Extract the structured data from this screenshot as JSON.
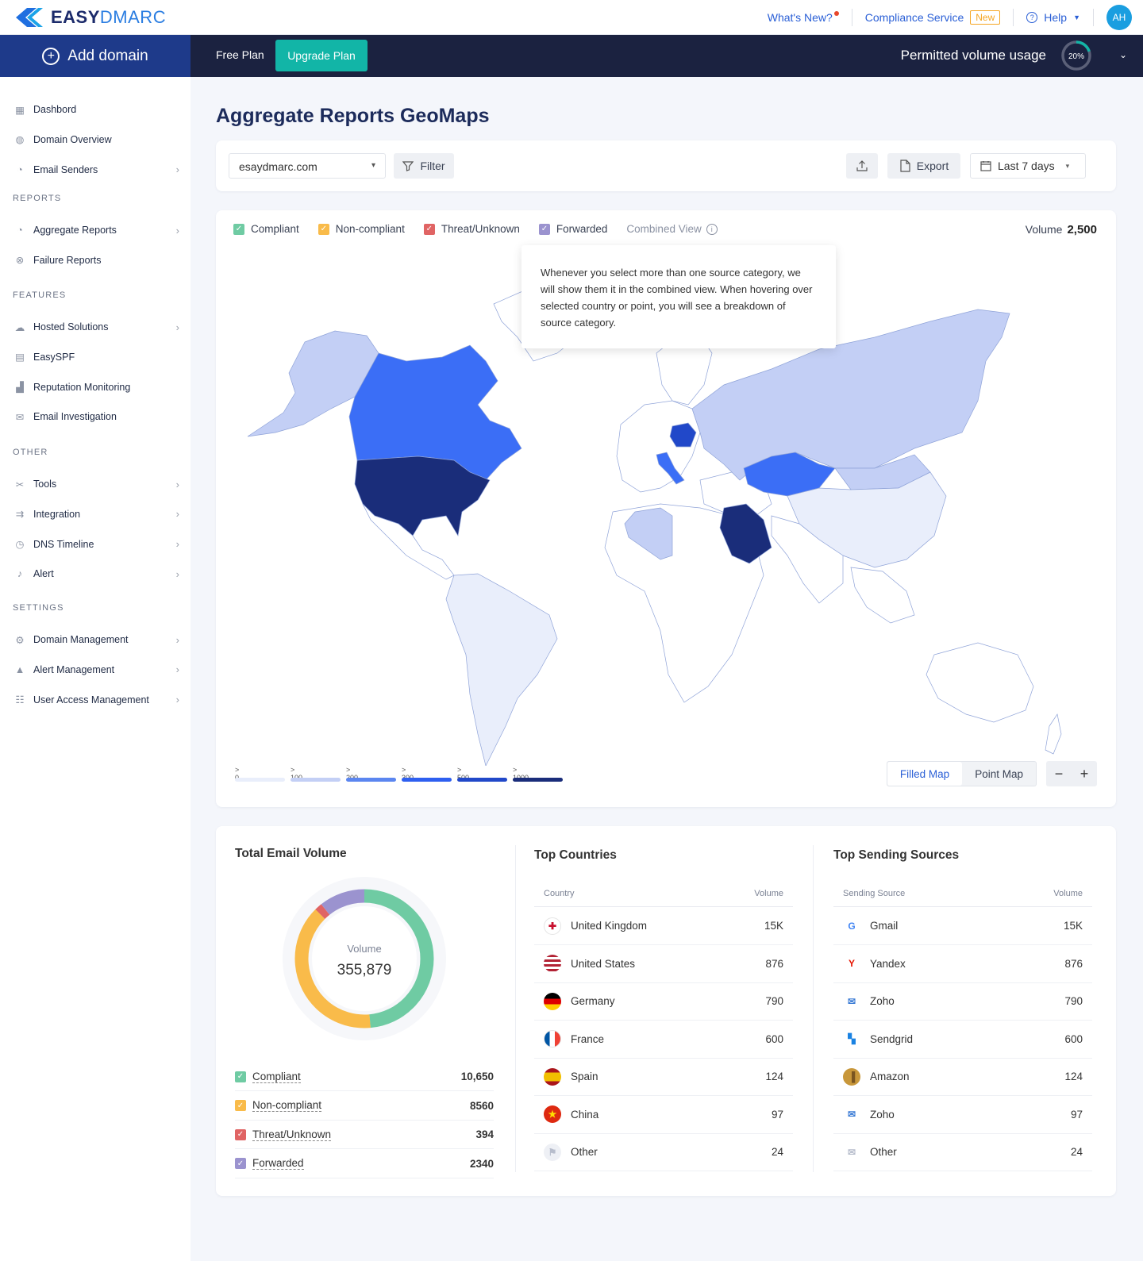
{
  "app": {
    "logo_bold": "EASY",
    "logo_light": "DMARC"
  },
  "topbar": {
    "whats_new": "What's New?",
    "compliance": "Compliance Service",
    "new_badge": "New",
    "help": "Help",
    "avatar": "AH"
  },
  "navbar": {
    "add_domain": "Add domain",
    "free_plan": "Free Plan",
    "upgrade": "Upgrade Plan",
    "permitted": "Permitted volume usage",
    "usage_percent": "20%",
    "usage_fraction": 0.2
  },
  "sidebar": {
    "items_top": [
      {
        "label": "Dashbord",
        "icon": "dashboard-icon",
        "chev": false
      },
      {
        "label": "Domain Overview",
        "icon": "globe-icon",
        "chev": false
      },
      {
        "label": "Email Senders",
        "icon": "pie-icon",
        "chev": true
      }
    ],
    "reports_head": "REPORTS",
    "reports": [
      {
        "label": "Aggregate Reports",
        "icon": "pie-icon",
        "chev": true
      },
      {
        "label": "Failure Reports",
        "icon": "failure-icon",
        "chev": false
      }
    ],
    "features_head": "FEATURES",
    "features": [
      {
        "label": "Hosted Solutions",
        "icon": "cloud-icon",
        "chev": true
      },
      {
        "label": "EasySPF",
        "icon": "spf-icon",
        "chev": false
      },
      {
        "label": "Reputation Monitoring",
        "icon": "bars-icon",
        "chev": false
      },
      {
        "label": "Email Investigation",
        "icon": "investigate-icon",
        "chev": false
      }
    ],
    "other_head": "OTHER",
    "other": [
      {
        "label": "Tools",
        "icon": "tools-icon",
        "chev": true
      },
      {
        "label": "Integration",
        "icon": "integration-icon",
        "chev": true
      },
      {
        "label": "DNS Timeline",
        "icon": "clock-icon",
        "chev": true
      },
      {
        "label": "Alert",
        "icon": "bell-icon",
        "chev": true
      }
    ],
    "settings_head": "SETTINGS",
    "settings": [
      {
        "label": "Domain Management",
        "icon": "gear-icon",
        "chev": true
      },
      {
        "label": "Alert Management",
        "icon": "warning-icon",
        "chev": true
      },
      {
        "label": "User Access Management",
        "icon": "users-icon",
        "chev": true
      }
    ]
  },
  "page": {
    "title": "Aggregate Reports GeoMaps"
  },
  "toolbar": {
    "domain": "esaydmarc.com",
    "filter": "Filter",
    "export": "Export",
    "date": "Last 7 days"
  },
  "map": {
    "legend": {
      "compliant": "Compliant",
      "noncompliant": "Non-compliant",
      "threat": "Threat/Unknown",
      "forwarded": "Forwarded",
      "combined": "Combined View"
    },
    "volume_label": "Volume",
    "volume_value": "2,500",
    "tooltip": "Whenever you select more than one source category, we will show them it in the combined view. When hovering over selected country or point, you will see a breakdown of source category.",
    "scale": [
      "> 0",
      "> 100",
      "> 200",
      "> 300",
      "> 500",
      "> 1000"
    ],
    "scale_colors": [
      "#e9eefb",
      "#c3cff5",
      "#5b86f0",
      "#2e5ff0",
      "#2148c9",
      "#1a2d7a"
    ],
    "filled_map": "Filled Map",
    "point_map": "Point Map",
    "country_colors": {
      "alaska": "#c3cff5",
      "canada": "#3b6ef6",
      "usa": "#1a2d7a",
      "greenland": "#ffffff",
      "south_america": "#e9eefb",
      "brazil": "#e9eefb",
      "russia": "#c3cff5",
      "kazakhstan": "#3b6ef6",
      "china": "#e9eefb",
      "mongolia": "#c3cff5",
      "saudi": "#1a2d7a",
      "algeria": "#c3cff5",
      "poland": "#2148c9",
      "italy": "#3b6ef6"
    }
  },
  "stats": {
    "total_title": "Total Email Volume",
    "donut_label": "Volume",
    "donut_value": "355,879",
    "segments": [
      {
        "label": "Compliant",
        "value": "10,650",
        "num": 10650,
        "color": "#6fcba3"
      },
      {
        "label": "Non-compliant",
        "value": "8560",
        "num": 8560,
        "color": "#f9bb4a"
      },
      {
        "label": "Threat/Unknown",
        "value": "394",
        "num": 394,
        "color": "#e06464"
      },
      {
        "label": "Forwarded",
        "value": "2340",
        "num": 2340,
        "color": "#9b93cf"
      }
    ],
    "countries_title": "Top Countries",
    "countries_head": [
      "Country",
      "Volume"
    ],
    "countries": [
      {
        "name": "United Kingdom",
        "value": "15K",
        "icon": "uk-flag-icon"
      },
      {
        "name": "United States",
        "value": "876",
        "icon": "us-flag-icon"
      },
      {
        "name": "Germany",
        "value": "790",
        "icon": "de-flag-icon"
      },
      {
        "name": "France",
        "value": "600",
        "icon": "fr-flag-icon"
      },
      {
        "name": "Spain",
        "value": "124",
        "icon": "es-flag-icon"
      },
      {
        "name": "China",
        "value": "97",
        "icon": "cn-flag-icon"
      },
      {
        "name": "Other",
        "value": "24",
        "icon": "flag-icon"
      }
    ],
    "sources_title": "Top Sending Sources",
    "sources_head": [
      "Sending Source",
      "Volume"
    ],
    "sources": [
      {
        "name": "Gmail",
        "value": "15K",
        "icon": "google-icon"
      },
      {
        "name": "Yandex",
        "value": "876",
        "icon": "yandex-icon"
      },
      {
        "name": "Zoho",
        "value": "790",
        "icon": "zoho-icon"
      },
      {
        "name": "Sendgrid",
        "value": "600",
        "icon": "sendgrid-icon"
      },
      {
        "name": "Amazon",
        "value": "124",
        "icon": "amazon-icon"
      },
      {
        "name": "Zoho",
        "value": "97",
        "icon": "zoho-icon"
      },
      {
        "name": "Other",
        "value": "24",
        "icon": "mail-icon"
      }
    ]
  }
}
